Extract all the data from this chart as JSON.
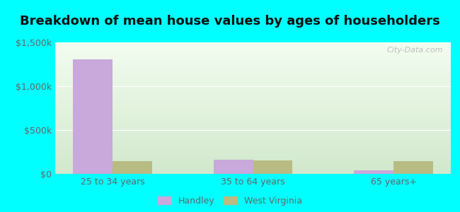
{
  "title": "Breakdown of mean house values by ages of householders",
  "categories": [
    "25 to 34 years",
    "35 to 64 years",
    "65 years+"
  ],
  "handley_values": [
    1310000,
    165000,
    38000
  ],
  "wv_values": [
    148000,
    150000,
    145000
  ],
  "handley_color": "#c9a8dc",
  "wv_color": "#b8bc82",
  "ylim": [
    0,
    1500000
  ],
  "yticks": [
    0,
    500000,
    1000000,
    1500000
  ],
  "ytick_labels": [
    "$0",
    "$500k",
    "$1,000k",
    "$1,500k"
  ],
  "background_outer": "#00ffff",
  "bar_width": 0.28,
  "legend_labels": [
    "Handley",
    "West Virginia"
  ],
  "watermark": "City-Data.com",
  "title_fontsize": 13,
  "label_fontsize": 9,
  "tick_color": "#666666"
}
